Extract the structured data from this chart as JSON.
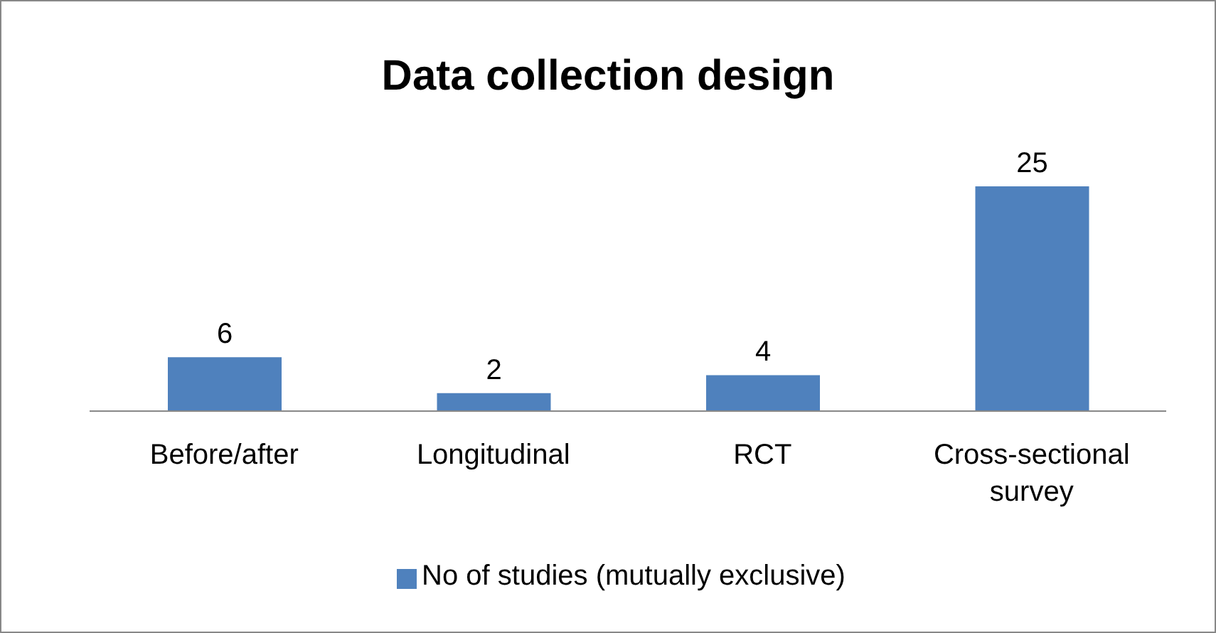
{
  "chart_data": {
    "type": "bar",
    "title": "Data collection design",
    "categories": [
      "Before/after",
      "Longitudinal",
      "RCT",
      "Cross-sectional survey"
    ],
    "series": [
      {
        "name": "No of studies (mutually exclusive)",
        "color": "#4f81bd",
        "values": [
          6,
          2,
          4,
          25
        ]
      }
    ],
    "data_labels": true,
    "legend": "bottom"
  }
}
